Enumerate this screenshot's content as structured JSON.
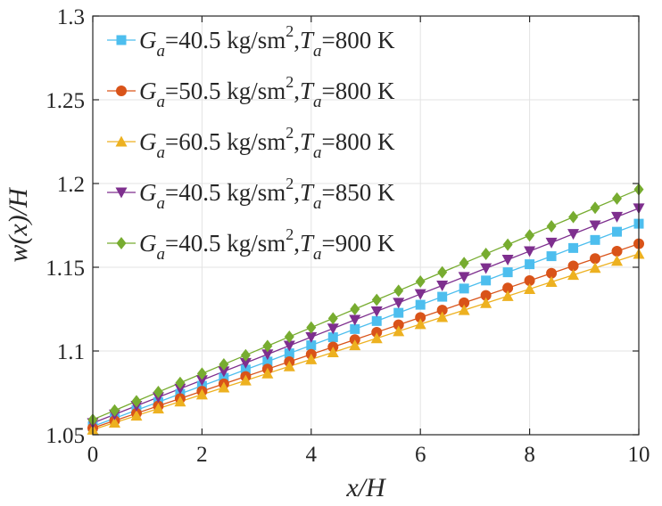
{
  "chart_data": {
    "type": "line",
    "title": "",
    "xlabel": "x/H",
    "ylabel": "w(x)/H",
    "xlim": [
      0,
      10
    ],
    "ylim": [
      1.05,
      1.3
    ],
    "xticks": [
      "0",
      "2",
      "4",
      "6",
      "8",
      "10"
    ],
    "yticks": [
      "1.05",
      "1.1",
      "1.15",
      "1.2",
      "1.25",
      "1.3"
    ],
    "grid": true,
    "legend_position": "top-left",
    "x": [
      0.0,
      0.4,
      0.8,
      1.2,
      1.6,
      2.0,
      2.4,
      2.8,
      3.2,
      3.6,
      4.0,
      4.4,
      4.8,
      5.2,
      5.6,
      6.0,
      6.4,
      6.8,
      7.2,
      7.6,
      8.0,
      8.4,
      8.8,
      9.2,
      9.6,
      10.0
    ],
    "series": [
      {
        "name": "G_a=40.5 kg/sm^2, T_a=800 K",
        "legend": {
          "g": "G",
          "gsub": "a",
          "gval": "=40.5 kg/sm",
          "sup": "2",
          "comma": ",",
          "t": "T",
          "tsub": "a",
          "tval": "=800 K"
        },
        "color": "#4DBEEE",
        "marker": "square",
        "values": [
          1.055,
          1.0598,
          1.0647,
          1.0695,
          1.0744,
          1.0792,
          1.084,
          1.0889,
          1.0937,
          1.0986,
          1.1034,
          1.1082,
          1.1131,
          1.1179,
          1.1228,
          1.1276,
          1.1324,
          1.1373,
          1.1421,
          1.147,
          1.1518,
          1.1566,
          1.1615,
          1.1663,
          1.1712,
          1.176
        ]
      },
      {
        "name": "G_a=50.5 kg/sm^2, T_a=800 K",
        "legend": {
          "g": "G",
          "gsub": "a",
          "gval": "=50.5 kg/sm",
          "sup": "2",
          "comma": ",",
          "t": "T",
          "tsub": "a",
          "tval": "=800 K"
        },
        "color": "#D95319",
        "marker": "circle",
        "values": [
          1.054,
          1.0584,
          1.0628,
          1.0672,
          1.0716,
          1.076,
          1.0804,
          1.0848,
          1.0892,
          1.0936,
          1.098,
          1.1024,
          1.1068,
          1.1112,
          1.1156,
          1.12,
          1.1244,
          1.1288,
          1.1332,
          1.1376,
          1.142,
          1.1464,
          1.1508,
          1.1552,
          1.1596,
          1.164
        ]
      },
      {
        "name": "G_a=60.5 kg/sm^2, T_a=800 K",
        "legend": {
          "g": "G",
          "gsub": "a",
          "gval": "=60.5 kg/sm",
          "sup": "2",
          "comma": ",",
          "t": "T",
          "tsub": "a",
          "tval": "=800 K"
        },
        "color": "#EDB120",
        "marker": "triangle-up",
        "values": [
          1.053,
          1.0572,
          1.0614,
          1.0656,
          1.0698,
          1.074,
          1.0782,
          1.0824,
          1.0866,
          1.0908,
          1.095,
          1.0992,
          1.1034,
          1.1076,
          1.1118,
          1.116,
          1.1202,
          1.1244,
          1.1286,
          1.1328,
          1.137,
          1.1412,
          1.1454,
          1.1496,
          1.1538,
          1.158
        ]
      },
      {
        "name": "G_a=40.5 kg/sm^2, T_a=850 K",
        "legend": {
          "g": "G",
          "gsub": "a",
          "gval": "=40.5 kg/sm",
          "sup": "2",
          "comma": ",",
          "t": "T",
          "tsub": "a",
          "tval": "=850 K"
        },
        "color": "#7E2F8E",
        "marker": "triangle-down",
        "values": [
          1.057,
          1.0621,
          1.0673,
          1.0724,
          1.0775,
          1.0826,
          1.0878,
          1.0929,
          1.098,
          1.1032,
          1.1083,
          1.1134,
          1.1186,
          1.1237,
          1.1288,
          1.134,
          1.1391,
          1.1442,
          1.1494,
          1.1545,
          1.1596,
          1.1647,
          1.1699,
          1.175,
          1.1801,
          1.1852
        ]
      },
      {
        "name": "G_a=40.5 kg/sm^2, T_a=900 K",
        "legend": {
          "g": "G",
          "gsub": "a",
          "gval": "=40.5 kg/sm",
          "sup": "2",
          "comma": ",",
          "t": "T",
          "tsub": "a",
          "tval": "=900 K"
        },
        "color": "#77AC30",
        "marker": "diamond",
        "values": [
          1.059,
          1.0645,
          1.07,
          1.0755,
          1.081,
          1.0865,
          1.092,
          1.0975,
          1.103,
          1.1085,
          1.114,
          1.1195,
          1.125,
          1.1305,
          1.136,
          1.1415,
          1.147,
          1.1525,
          1.158,
          1.1635,
          1.169,
          1.1745,
          1.18,
          1.1855,
          1.191,
          1.1965
        ]
      }
    ]
  }
}
